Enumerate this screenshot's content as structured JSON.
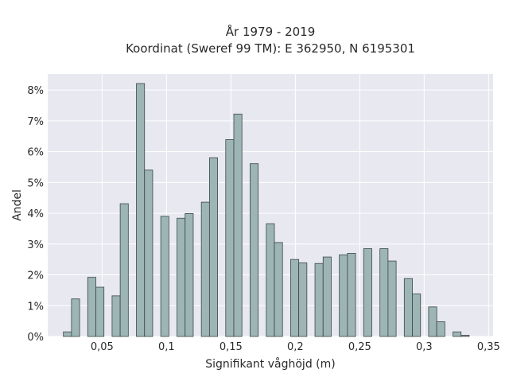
{
  "chart_data": {
    "type": "bar",
    "title_line1": "År 1979 - 2019",
    "title_line2": "Koordinat (Sweref 99 TM): E 362950, N 6195301",
    "xlabel": "Signifikant våghöjd (m)",
    "ylabel": "Andel",
    "xlim": [
      0.0078,
      0.3535
    ],
    "ylim": [
      0,
      8.52
    ],
    "grid": true,
    "bar_width": 0.0063,
    "x_ticks": [
      {
        "value": 0.05,
        "label": "0,05"
      },
      {
        "value": 0.1,
        "label": "0,1"
      },
      {
        "value": 0.15,
        "label": "0,15"
      },
      {
        "value": 0.2,
        "label": "0,2"
      },
      {
        "value": 0.25,
        "label": "0,25"
      },
      {
        "value": 0.3,
        "label": "0,3"
      },
      {
        "value": 0.35,
        "label": "0,35"
      }
    ],
    "y_ticks": [
      {
        "value": 0,
        "label": "0%"
      },
      {
        "value": 1,
        "label": "1%"
      },
      {
        "value": 2,
        "label": "2%"
      },
      {
        "value": 3,
        "label": "3%"
      },
      {
        "value": 4,
        "label": "4%"
      },
      {
        "value": 5,
        "label": "5%"
      },
      {
        "value": 6,
        "label": "6%"
      },
      {
        "value": 7,
        "label": "7%"
      },
      {
        "value": 8,
        "label": "8%"
      }
    ],
    "colors": {
      "bar_fill": "#9eb5b5",
      "bar_stroke": "#3a4747",
      "plot_bg": "#e8e8f0",
      "grid": "#ffffff"
    },
    "x": [
      0.0231,
      0.0294,
      0.042,
      0.0483,
      0.0609,
      0.0672,
      0.0798,
      0.0861,
      0.0987,
      0.1113,
      0.1176,
      0.1302,
      0.1365,
      0.1491,
      0.1554,
      0.168,
      0.1806,
      0.1869,
      0.1995,
      0.2058,
      0.2184,
      0.2247,
      0.2373,
      0.2436,
      0.2562,
      0.2688,
      0.2751,
      0.2877,
      0.294,
      0.3066,
      0.3129,
      0.3255,
      0.3318
    ],
    "values": [
      0.15,
      1.22,
      1.92,
      1.6,
      1.32,
      4.31,
      8.21,
      5.4,
      3.9,
      3.84,
      3.99,
      4.36,
      5.8,
      6.39,
      7.22,
      5.61,
      3.66,
      3.05,
      2.5,
      2.39,
      2.37,
      2.58,
      2.65,
      2.7,
      2.85,
      2.85,
      2.45,
      1.88,
      1.38,
      0.96,
      0.48,
      0.15,
      0.04
    ]
  }
}
